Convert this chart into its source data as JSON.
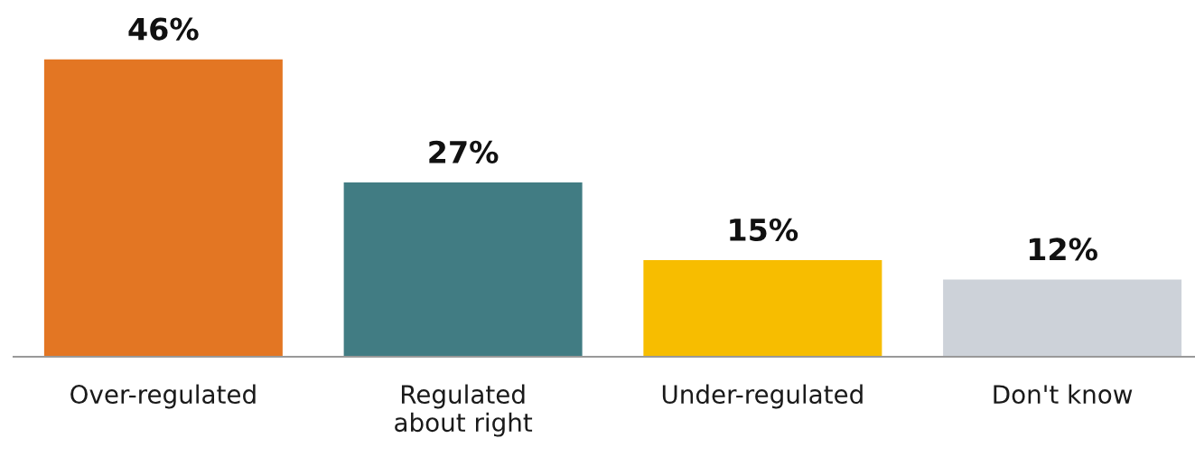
{
  "chart_data": {
    "type": "bar",
    "categories": [
      "Over-regulated",
      "Regulated\nabout right",
      "Under-regulated",
      "Don't know"
    ],
    "values": [
      46,
      27,
      15,
      12
    ],
    "colors": [
      "#e37623",
      "#417c83",
      "#f7bd00",
      "#cdd2d9"
    ],
    "value_labels": [
      "46%",
      "27%",
      "15%",
      "12%"
    ],
    "grid": false,
    "legend": false
  }
}
